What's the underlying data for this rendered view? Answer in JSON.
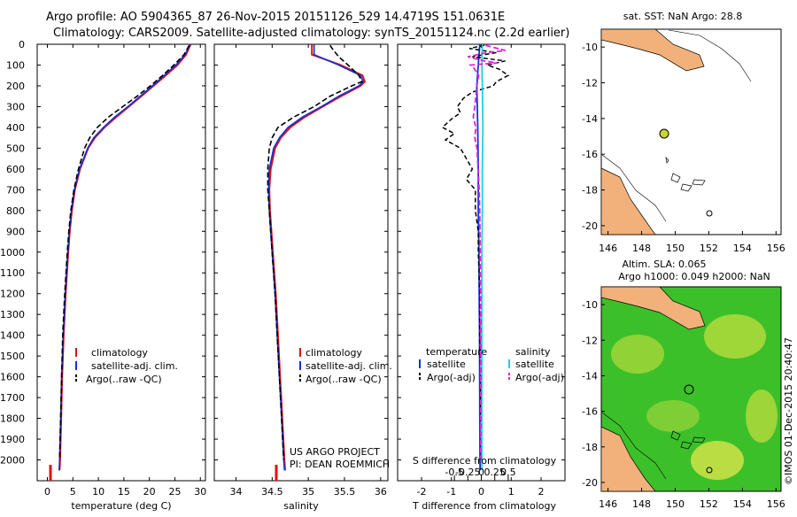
{
  "title": {
    "line1": "Argo profile: AO 5904365_87 26-Nov-2015 20151126_529 14.4719S 151.0631E",
    "line2": "Climatology: CARS2009. Satellite-adjusted climatology: synTS_20151124.nc (2.2d earlier)"
  },
  "colors": {
    "climatology": "#e01010",
    "satellite": "#1030e0",
    "argo": "#000000",
    "sal_satellite": "#20d0e0",
    "sal_argo": "#e020e0",
    "land": "#f2b17a",
    "sla_green": "#3cc02a"
  },
  "chart_data": [
    {
      "type": "line",
      "title": "",
      "xlabel": "temperature (deg C)",
      "ylabel": "",
      "xlim": [
        -2,
        31
      ],
      "ylim": [
        2100,
        0
      ],
      "xticks": [
        0,
        5,
        10,
        15,
        20,
        25,
        30
      ],
      "yticks": [
        0,
        100,
        200,
        300,
        400,
        500,
        600,
        700,
        800,
        900,
        1000,
        1100,
        1200,
        1300,
        1400,
        1500,
        1600,
        1700,
        1800,
        1900,
        2000
      ],
      "legend": [
        "climatology",
        "satellite-adj. clim.",
        "Argo(..raw -QC)"
      ],
      "series": [
        {
          "name": "climatology",
          "depth": [
            0,
            50,
            100,
            150,
            200,
            250,
            300,
            350,
            400,
            450,
            500,
            600,
            700,
            800,
            900,
            1000,
            1200,
            1400,
            1600,
            1800,
            2000,
            2050
          ],
          "values": [
            28.1,
            27.2,
            25.5,
            23.2,
            20.8,
            18.4,
            16.0,
            13.5,
            11.2,
            9.3,
            8.0,
            6.4,
            5.4,
            4.8,
            4.4,
            4.1,
            3.6,
            3.2,
            2.9,
            2.7,
            2.5,
            2.4
          ]
        },
        {
          "name": "satellite-adj. clim.",
          "depth": [
            0,
            50,
            100,
            150,
            200,
            250,
            300,
            350,
            400,
            450,
            500,
            600,
            700,
            800,
            900,
            1000,
            1200,
            1400,
            1600,
            1800,
            2000,
            2050
          ],
          "values": [
            28.0,
            27.0,
            25.2,
            22.9,
            20.6,
            18.2,
            15.8,
            13.2,
            11.0,
            9.1,
            7.9,
            6.3,
            5.3,
            4.7,
            4.3,
            4.0,
            3.5,
            3.1,
            2.8,
            2.6,
            2.4,
            2.3
          ]
        },
        {
          "name": "Argo(..raw -QC)",
          "depth": [
            5,
            50,
            100,
            150,
            200,
            250,
            300,
            350,
            400,
            450,
            500,
            550,
            600,
            700,
            800,
            900,
            1000,
            1200,
            1400,
            1600,
            1800,
            2000
          ],
          "values": [
            27.8,
            26.8,
            24.8,
            22.6,
            20.2,
            17.6,
            14.8,
            12.0,
            9.8,
            8.3,
            7.3,
            6.7,
            6.1,
            5.2,
            4.6,
            4.2,
            3.9,
            3.4,
            3.0,
            2.8,
            2.6,
            2.4
          ]
        }
      ]
    },
    {
      "type": "line",
      "xlabel": "salinity",
      "xlim": [
        33.7,
        36.1
      ],
      "ylim": [
        2100,
        0
      ],
      "xticks": [
        34,
        34.5,
        35,
        35.5,
        36
      ],
      "legend": [
        "climatology",
        "satellite-adj. clim.",
        "Argo(..raw -QC)"
      ],
      "series": [
        {
          "name": "climatology",
          "depth": [
            0,
            50,
            100,
            150,
            180,
            200,
            250,
            300,
            350,
            400,
            450,
            500,
            600,
            700,
            800,
            900,
            1000,
            1200,
            1400,
            1600,
            1800,
            2000,
            2050
          ],
          "values": [
            35.05,
            35.05,
            35.45,
            35.75,
            35.78,
            35.72,
            35.45,
            35.2,
            34.95,
            34.75,
            34.62,
            34.54,
            34.48,
            34.46,
            34.47,
            34.49,
            34.51,
            34.55,
            34.58,
            34.61,
            34.64,
            34.67,
            34.68
          ]
        },
        {
          "name": "satellite-adj. clim.",
          "depth": [
            0,
            50,
            100,
            150,
            180,
            200,
            250,
            300,
            350,
            400,
            450,
            500,
            600,
            700,
            800,
            900,
            1000,
            1200,
            1400,
            1600,
            1800,
            2000,
            2050
          ],
          "values": [
            35.08,
            35.08,
            35.42,
            35.72,
            35.76,
            35.7,
            35.42,
            35.18,
            34.92,
            34.72,
            34.6,
            34.52,
            34.46,
            34.45,
            34.46,
            34.48,
            34.5,
            34.54,
            34.57,
            34.6,
            34.63,
            34.66,
            34.67
          ]
        },
        {
          "name": "Argo(..raw -QC)",
          "depth": [
            5,
            30,
            60,
            100,
            150,
            180,
            200,
            250,
            300,
            350,
            400,
            450,
            500,
            600,
            700,
            800,
            900,
            1000,
            1200,
            1400,
            1600,
            1800,
            2000
          ],
          "values": [
            35.3,
            35.35,
            35.42,
            35.55,
            35.7,
            35.74,
            35.6,
            35.3,
            35.08,
            34.8,
            34.58,
            34.5,
            34.46,
            34.44,
            34.44,
            34.46,
            34.48,
            34.5,
            34.54,
            34.57,
            34.6,
            34.63,
            34.66
          ]
        }
      ]
    },
    {
      "type": "line",
      "xlabel": "T difference from climatology",
      "x2label": "S difference from climatology",
      "xlim": [
        -2.8,
        2.8
      ],
      "ylim": [
        2100,
        0
      ],
      "xticks": [
        -2,
        -1,
        0,
        1,
        2
      ],
      "x2ticks": [
        "-0.5",
        "-0.25",
        "0",
        "0.25",
        "0.5"
      ],
      "legend_titles": [
        "temperature",
        "salinity"
      ],
      "legend": [
        "satellite",
        "Argo(-adj)",
        "satellite",
        "Argo(-adj)"
      ],
      "series": [
        {
          "name": "temperature satellite",
          "depth": [
            0,
            100,
            200,
            400,
            600,
            800,
            1000,
            1400,
            1800,
            2050
          ],
          "values": [
            -0.05,
            -0.1,
            -0.15,
            -0.12,
            -0.1,
            -0.1,
            -0.08,
            -0.06,
            -0.05,
            -0.04
          ]
        },
        {
          "name": "temperature Argo(-adj)",
          "depth": [
            5,
            20,
            40,
            60,
            80,
            100,
            120,
            150,
            180,
            200,
            230,
            260,
            300,
            330,
            360,
            400,
            430,
            460,
            500,
            550,
            600,
            650,
            700,
            800,
            900,
            1000,
            1200,
            1400,
            1600,
            1800,
            2000
          ],
          "values": [
            0.1,
            -0.4,
            0.5,
            -0.3,
            0.8,
            0.2,
            0.6,
            0.9,
            0.5,
            0.4,
            -0.3,
            -0.6,
            -0.8,
            -0.7,
            -1.0,
            -1.3,
            -0.9,
            -1.2,
            -0.7,
            -0.5,
            -0.3,
            -0.5,
            -0.2,
            -0.2,
            -0.1,
            -0.1,
            -0.05,
            -0.05,
            -0.02,
            -0.02,
            0.0
          ]
        },
        {
          "name": "salinity satellite",
          "depth": [
            0,
            100,
            200,
            400,
            600,
            800,
            1000,
            1400,
            1800,
            2050
          ],
          "values": [
            0.02,
            0.01,
            0.02,
            0.03,
            0.02,
            0.02,
            0.01,
            0.01,
            0.01,
            0.01
          ]
        },
        {
          "name": "salinity Argo(-adj)",
          "depth": [
            5,
            30,
            40,
            60,
            80,
            90,
            100,
            110,
            150,
            200,
            250,
            300,
            350,
            400,
            450,
            500,
            550,
            600,
            700,
            800,
            1000,
            1400,
            1800,
            2000
          ],
          "values": [
            0.08,
            0.45,
            0.1,
            -0.25,
            0.05,
            0.3,
            -0.2,
            -0.15,
            -0.05,
            -0.08,
            -0.1,
            -0.12,
            -0.15,
            -0.1,
            -0.12,
            -0.08,
            -0.07,
            -0.06,
            -0.04,
            -0.03,
            -0.02,
            -0.01,
            -0.01,
            -0.01
          ]
        }
      ]
    }
  ],
  "panels": {
    "temp": {
      "legend": [
        "climatology",
        "satellite-adj. clim.",
        "Argo(..raw -QC)"
      ]
    },
    "sal": {
      "legend": [
        "climatology",
        "satellite-adj. clim.",
        "Argo(..raw -QC)"
      ],
      "credit1": "US ARGO PROJECT",
      "credit2": "PI: DEAN ROEMMICH"
    },
    "diff": {
      "legend_t": "temperature",
      "legend_s": "salinity",
      "sat": "satellite",
      "argo": "Argo(-adj)"
    }
  },
  "maps": {
    "sst_title": "sat. SST: NaN Argo: 28.8",
    "sla_title1": "Altim. SLA: 0.065",
    "sla_title2": "Argo h1000: 0.049 h2000: NaN",
    "lon_ticks": [
      "146",
      "148",
      "150",
      "152",
      "154",
      "156"
    ],
    "lat_ticks": [
      "-10",
      "-12",
      "-14",
      "-16",
      "-18",
      "-20"
    ],
    "float_lon": 151.06,
    "float_lat": -14.47
  },
  "watermark": "©IMOS 01-Dec-2015 20:40:47"
}
